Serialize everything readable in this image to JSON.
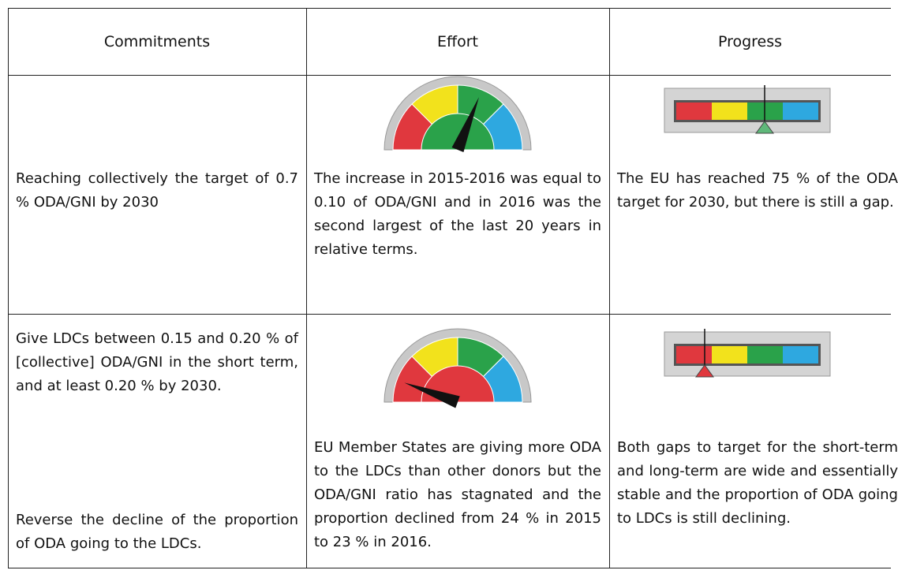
{
  "table": {
    "columns": [
      "Commitments",
      "Effort",
      "Progress"
    ],
    "rows": [
      {
        "commitment": [
          "Reaching collectively the target of 0.7 % ODA/GNI by 2030"
        ],
        "effort": "The increase in 2015-2016 was equal to 0.10 of ODA/GNI and in 2016 was the second largest of the last 20 years in relative terms.",
        "progress": "The EU has reached 75 % of the ODA target for 2030, but there is still a gap."
      },
      {
        "commitment": [
          "Give LDCs between 0.15 and 0.20 % of [collective] ODA/GNI in the short term, and at least 0.20 % by 2030.",
          "Reverse the decline of the proportion of ODA going to the LDCs."
        ],
        "effort": "EU Member States are giving more ODA to the LDCs than other donors but the ODA/GNI ratio has stagnated and the proportion declined from 24 % in 2015 to 23 % in 2016.",
        "progress": "Both gaps to target for the short-term and long-term are wide and essentially stable and the proportion of ODA going to LDCs is still declining."
      }
    ]
  }
}
